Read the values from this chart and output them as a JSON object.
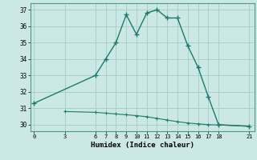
{
  "line1_x": [
    0,
    6,
    7,
    8,
    9,
    10,
    11,
    12,
    13,
    14,
    15,
    16,
    17,
    18,
    21
  ],
  "line1_y": [
    31.3,
    33.0,
    34.0,
    35.0,
    36.7,
    35.5,
    36.8,
    37.0,
    36.5,
    36.5,
    34.8,
    33.5,
    31.7,
    30.0,
    29.9
  ],
  "line2_x": [
    3,
    6,
    7,
    8,
    9,
    10,
    11,
    12,
    13,
    14,
    15,
    16,
    17,
    18,
    21
  ],
  "line2_y": [
    30.8,
    30.75,
    30.7,
    30.65,
    30.6,
    30.55,
    30.48,
    30.38,
    30.28,
    30.18,
    30.1,
    30.05,
    30.0,
    29.98,
    29.9
  ],
  "line_color": "#1a7a6e",
  "bg_color": "#cce8e4",
  "grid_color": "#a8d0cc",
  "xlabel": "Humidex (Indice chaleur)",
  "xticks": [
    0,
    3,
    6,
    7,
    8,
    9,
    10,
    11,
    12,
    13,
    14,
    15,
    16,
    17,
    18,
    21
  ],
  "yticks": [
    30,
    31,
    32,
    33,
    34,
    35,
    36,
    37
  ],
  "xlim": [
    -0.3,
    21.5
  ],
  "ylim": [
    29.6,
    37.4
  ]
}
